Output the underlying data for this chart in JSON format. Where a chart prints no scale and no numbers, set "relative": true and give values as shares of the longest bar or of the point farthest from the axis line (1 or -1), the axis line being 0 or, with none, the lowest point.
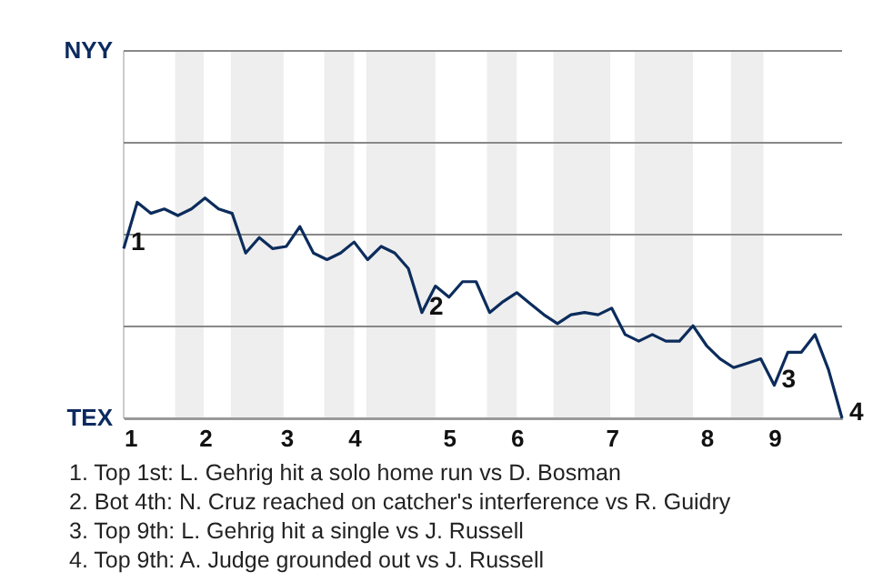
{
  "chart_data": {
    "type": "line",
    "relative": true,
    "categories": [
      "1",
      null,
      null,
      null,
      null,
      null,
      "2",
      null,
      null,
      null,
      null,
      null,
      "3",
      null,
      null,
      null,
      null,
      "4",
      null,
      null,
      null,
      null,
      null,
      null,
      "5",
      null,
      null,
      null,
      null,
      "6",
      null,
      null,
      null,
      null,
      null,
      null,
      "7",
      null,
      null,
      null,
      null,
      null,
      null,
      "8",
      null,
      null,
      null,
      null,
      "9",
      null,
      null,
      null,
      null,
      null
    ],
    "series": [
      {
        "color": "#0c2c5c",
        "values": [
          0.77,
          0.98,
          0.93,
          0.95,
          0.92,
          0.95,
          1,
          0.95,
          0.93,
          0.75,
          0.82,
          0.77,
          0.78,
          0.87,
          0.75,
          0.72,
          0.75,
          0.8,
          0.72,
          0.78,
          0.75,
          0.68,
          0.48,
          0.6,
          0.55,
          0.62,
          0.62,
          0.48,
          0.53,
          0.57,
          0.52,
          0.47,
          0.43,
          0.47,
          0.48,
          0.47,
          0.5,
          0.38,
          0.35,
          0.38,
          0.35,
          0.35,
          0.42,
          0.33,
          0.27,
          0.23,
          0.25,
          0.27,
          0.15,
          0.3,
          0.3,
          0.38,
          0.22,
          0
        ]
      }
    ],
    "ref_lines": [
      {
        "axis": "y",
        "value": 0,
        "label": "TEX",
        "color": "#999999"
      },
      {
        "axis": "y",
        "value": 0.417,
        "color": "#888888"
      },
      {
        "axis": "y",
        "value": 0.833,
        "color": "#888888"
      },
      {
        "axis": "y",
        "value": 1.25,
        "color": "#888888"
      },
      {
        "axis": "y",
        "value": 1.667,
        "label": "NYY",
        "color": "#888888"
      }
    ],
    "annotations": [
      {
        "text": "1",
        "x": "1",
        "y": 0.77
      },
      "2",
      "3",
      "4",
      "1. Top 1st: L. Gehrig hit a solo home run vs D. Bosman",
      "2. Bot 4th: N. Cruz reached on catcher's interference vs R. Guidry",
      "3. Top 9th: L. Gehrig hit a single vs J. Russell",
      "4. Top 9th: A. Judge grounded out vs J. Russell"
    ]
  }
}
